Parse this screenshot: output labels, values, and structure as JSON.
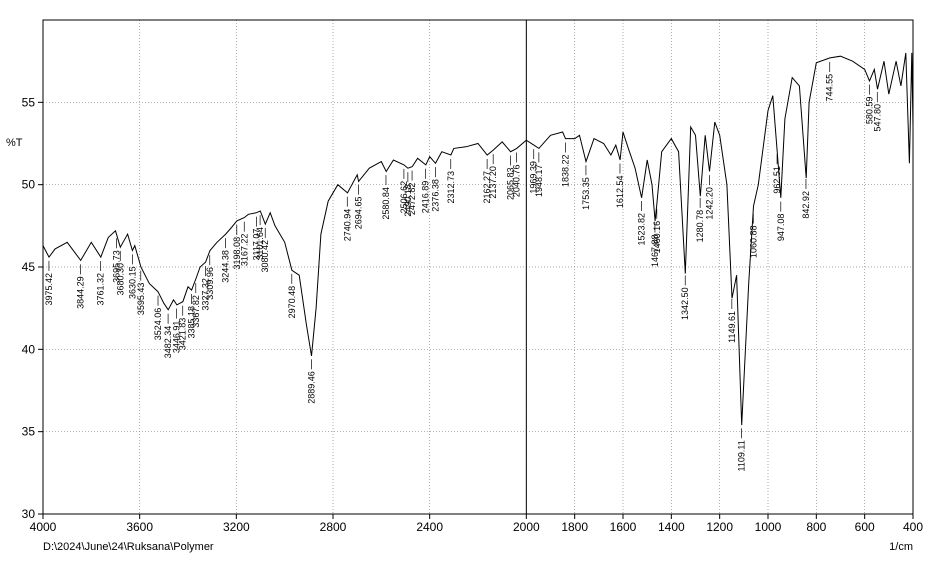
{
  "chart_data": {
    "type": "line",
    "y_label": "%T",
    "x_label": "1/cm",
    "footer": "D:\\2024\\June\\24\\Ruksana\\Polymer",
    "xlim": [
      4000,
      400
    ],
    "ylim": [
      30,
      60
    ],
    "xticks": [
      4000,
      3600,
      3200,
      2800,
      2400,
      2000,
      1800,
      1600,
      1400,
      1200,
      1000,
      800,
      600,
      400
    ],
    "yticks": [
      30,
      35,
      40,
      45,
      50,
      55
    ],
    "grid": true,
    "vline": 2000,
    "series": [
      {
        "name": "%T",
        "color": "#000000",
        "x": [
          4000,
          3975,
          3950,
          3900,
          3844,
          3800,
          3761,
          3730,
          3700,
          3680,
          3650,
          3630,
          3620,
          3595,
          3560,
          3524,
          3500,
          3482,
          3460,
          3446,
          3421,
          3400,
          3385,
          3367,
          3350,
          3327,
          3309,
          3280,
          3244,
          3220,
          3198,
          3167,
          3150,
          3117,
          3101,
          3080,
          3060,
          3040,
          3000,
          2970,
          2940,
          2910,
          2889,
          2870,
          2850,
          2820,
          2780,
          2740,
          2700,
          2694,
          2650,
          2600,
          2580,
          2550,
          2506,
          2490,
          2472,
          2450,
          2416,
          2400,
          2376,
          2350,
          2312,
          2300,
          2250,
          2200,
          2162,
          2137,
          2100,
          2065,
          2040,
          2000,
          1969,
          1948,
          1900,
          1850,
          1838,
          1800,
          1780,
          1753,
          1720,
          1680,
          1650,
          1630,
          1612,
          1600,
          1580,
          1550,
          1523,
          1500,
          1480,
          1467,
          1460,
          1440,
          1400,
          1370,
          1342,
          1320,
          1300,
          1280,
          1260,
          1242,
          1220,
          1200,
          1170,
          1149,
          1130,
          1109,
          1080,
          1060,
          1040,
          1000,
          980,
          962,
          947,
          930,
          900,
          870,
          842,
          830,
          800,
          744,
          700,
          650,
          600,
          580,
          560,
          547,
          520,
          500,
          470,
          450,
          430,
          415,
          405,
          400
        ],
        "values": [
          46.3,
          45.6,
          46.1,
          46.5,
          45.4,
          46.5,
          45.6,
          46.8,
          47.2,
          46.2,
          47.0,
          46.0,
          46.3,
          45.0,
          44.0,
          43.5,
          42.8,
          42.4,
          43.0,
          42.7,
          42.9,
          43.8,
          43.6,
          44.3,
          45.0,
          45.3,
          46.0,
          46.5,
          47.0,
          47.4,
          47.8,
          48.0,
          48.2,
          48.3,
          48.4,
          47.6,
          48.3,
          47.5,
          46.5,
          44.8,
          44.5,
          41.5,
          39.6,
          42.5,
          47.0,
          49.0,
          50.0,
          49.5,
          50.6,
          50.2,
          51.0,
          51.4,
          50.8,
          51.5,
          51.2,
          51.0,
          51.1,
          51.6,
          51.2,
          51.7,
          51.3,
          52.0,
          51.8,
          52.2,
          52.3,
          52.5,
          51.8,
          52.1,
          52.6,
          52.0,
          52.2,
          52.7,
          52.4,
          52.2,
          53.0,
          53.2,
          52.8,
          52.8,
          53.0,
          51.4,
          52.8,
          52.5,
          51.8,
          52.4,
          51.5,
          53.2,
          52.3,
          51.0,
          49.2,
          51.5,
          50.0,
          47.8,
          48.8,
          52.0,
          52.8,
          52.0,
          44.6,
          53.5,
          53.0,
          49.3,
          53.0,
          50.8,
          53.8,
          53.0,
          50.0,
          43.1,
          44.5,
          35.4,
          44.0,
          48.7,
          50.0,
          54.5,
          55.4,
          52.0,
          49.2,
          54.0,
          56.5,
          56.0,
          50.4,
          55.0,
          57.4,
          57.7,
          57.8,
          57.5,
          57.0,
          56.3,
          57.0,
          55.8,
          57.5,
          55.5,
          57.5,
          56.0,
          58.0,
          51.3,
          58.0,
          53.5
        ]
      }
    ],
    "peaks": [
      {
        "value": 3975.42,
        "label": "3975.42"
      },
      {
        "value": 3844.29,
        "label": "3844.29"
      },
      {
        "value": 3761.32,
        "label": "3761.32"
      },
      {
        "value": 3695.73,
        "label": "3695.73"
      },
      {
        "value": 3680.3,
        "label": "3680.30"
      },
      {
        "value": 3630.15,
        "label": "3630.15"
      },
      {
        "value": 3595.43,
        "label": "3595.43"
      },
      {
        "value": 3524.06,
        "label": "3524.06"
      },
      {
        "value": 3482.34,
        "label": "3482.34"
      },
      {
        "value": 3446.91,
        "label": "3446.91"
      },
      {
        "value": 3421.83,
        "label": "3421.83"
      },
      {
        "value": 3385.18,
        "label": "3385.18"
      },
      {
        "value": 3367.82,
        "label": "3367.82"
      },
      {
        "value": 3327.32,
        "label": "3327.32"
      },
      {
        "value": 3309.96,
        "label": "3309.96"
      },
      {
        "value": 3244.38,
        "label": "3244.38"
      },
      {
        "value": 3198.08,
        "label": "3198.08"
      },
      {
        "value": 3167.22,
        "label": "3167.22"
      },
      {
        "value": 3117.07,
        "label": "3117.07"
      },
      {
        "value": 3101.64,
        "label": "3101.64"
      },
      {
        "value": 3080.42,
        "label": "3080.42"
      },
      {
        "value": 2970.48,
        "label": "2970.48"
      },
      {
        "value": 2889.46,
        "label": "2889.46"
      },
      {
        "value": 2740.94,
        "label": "2740.94"
      },
      {
        "value": 2694.65,
        "label": "2694.65"
      },
      {
        "value": 2580.84,
        "label": "2580.84"
      },
      {
        "value": 2506.62,
        "label": "2506.62"
      },
      {
        "value": 2490.18,
        "label": "2490.18"
      },
      {
        "value": 2472.82,
        "label": "2472.82"
      },
      {
        "value": 2416.89,
        "label": "2416.89"
      },
      {
        "value": 2376.38,
        "label": "2376.38"
      },
      {
        "value": 2312.73,
        "label": "2312.73"
      },
      {
        "value": 2162.27,
        "label": "2162.27"
      },
      {
        "value": 2137.2,
        "label": "2137.20"
      },
      {
        "value": 2065.83,
        "label": "2065.83"
      },
      {
        "value": 2040.76,
        "label": "2040.76"
      },
      {
        "value": 1969.39,
        "label": "1969.39"
      },
      {
        "value": 1948.17,
        "label": "1948.17"
      },
      {
        "value": 1838.22,
        "label": "1838.22"
      },
      {
        "value": 1753.35,
        "label": "1753.35"
      },
      {
        "value": 1612.54,
        "label": "1612.54"
      },
      {
        "value": 1523.82,
        "label": "1523.82"
      },
      {
        "value": 1467.88,
        "label": "1467.88"
      },
      {
        "value": 1460.16,
        "label": "1460.16"
      },
      {
        "value": 1342.5,
        "label": "1342.50"
      },
      {
        "value": 1280.78,
        "label": "1280.78"
      },
      {
        "value": 1242.2,
        "label": "1242.20"
      },
      {
        "value": 1149.61,
        "label": "1149.61"
      },
      {
        "value": 1109.11,
        "label": "1109.11"
      },
      {
        "value": 1060.88,
        "label": "1060.88"
      },
      {
        "value": 962.51,
        "label": "962.51"
      },
      {
        "value": 947.08,
        "label": "947.08"
      },
      {
        "value": 842.92,
        "label": "842.92"
      },
      {
        "value": 744.55,
        "label": "744.55"
      },
      {
        "value": 580.59,
        "label": "580.59"
      },
      {
        "value": 547.8,
        "label": "547.80"
      }
    ]
  }
}
